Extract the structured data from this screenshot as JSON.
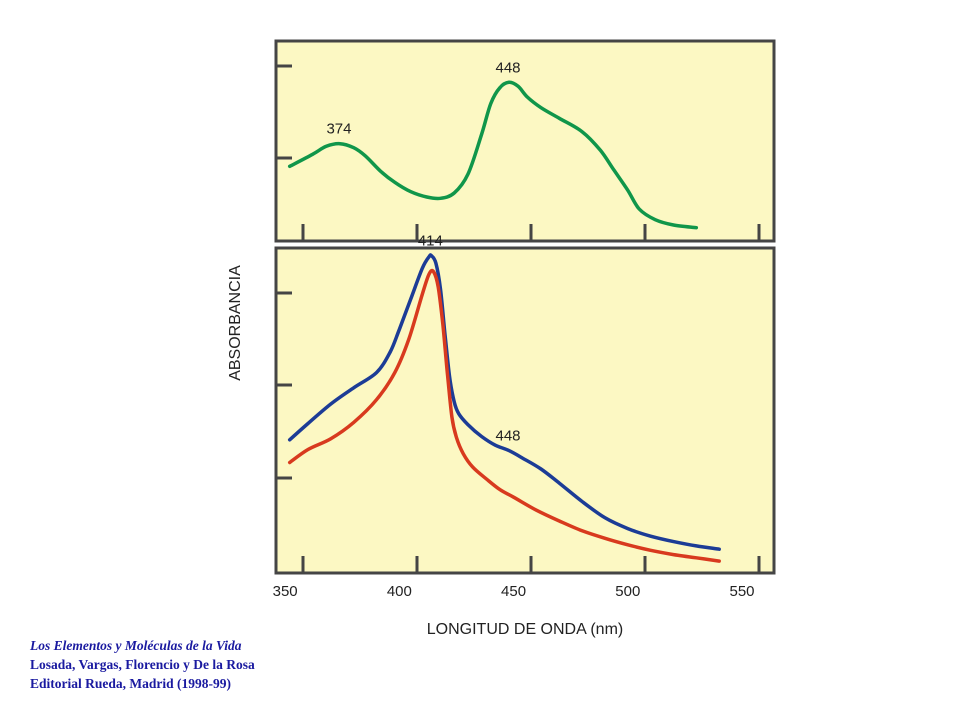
{
  "chart_data": [
    {
      "type": "line",
      "panel": "top",
      "series": [
        {
          "color": "#10964a",
          "x": [
            352,
            362,
            368,
            374,
            380,
            385,
            392,
            398,
            405,
            412,
            418,
            424,
            430,
            436,
            440,
            444,
            448,
            452,
            456,
            462,
            470,
            480,
            488,
            494,
            500,
            505,
            512,
            520,
            530
          ],
          "y": [
            0.56,
            0.65,
            0.71,
            0.73,
            0.7,
            0.64,
            0.52,
            0.44,
            0.37,
            0.33,
            0.32,
            0.36,
            0.5,
            0.8,
            1.03,
            1.15,
            1.19,
            1.16,
            1.08,
            1.0,
            0.92,
            0.82,
            0.68,
            0.53,
            0.38,
            0.24,
            0.16,
            0.12,
            0.1
          ]
        }
      ],
      "annotations": [
        {
          "x": 374,
          "y": 0.73,
          "text": "374"
        },
        {
          "x": 448,
          "y": 1.19,
          "text": "448"
        }
      ],
      "xlim": [
        346,
        564
      ],
      "ylim": [
        0,
        1.5
      ]
    },
    {
      "type": "line",
      "panel": "bottom",
      "xlabel": "LONGITUD DE ONDA (nm)",
      "ylabel": "ABSORBANCIA",
      "x_ticks": [
        "350",
        "400",
        "450",
        "500",
        "550"
      ],
      "xlim": [
        346,
        564
      ],
      "ylim": [
        0,
        3.0
      ],
      "series": [
        {
          "color": "#1c3c96",
          "x": [
            352,
            360,
            370,
            380,
            390,
            396,
            400,
            405,
            410,
            413,
            414,
            416,
            418,
            420,
            422,
            424,
            426,
            430,
            436,
            442,
            448,
            454,
            462,
            470,
            480,
            490,
            500,
            510,
            520,
            530,
            540
          ],
          "y": [
            1.23,
            1.38,
            1.56,
            1.71,
            1.85,
            2.04,
            2.25,
            2.53,
            2.81,
            2.92,
            2.93,
            2.86,
            2.62,
            2.2,
            1.81,
            1.58,
            1.47,
            1.37,
            1.26,
            1.18,
            1.13,
            1.06,
            0.96,
            0.83,
            0.66,
            0.51,
            0.41,
            0.34,
            0.29,
            0.25,
            0.22
          ]
        },
        {
          "color": "#d83a1e",
          "x": [
            352,
            360,
            370,
            380,
            390,
            398,
            404,
            410,
            413,
            415,
            417,
            419,
            421,
            423,
            425,
            428,
            432,
            438,
            444,
            450,
            460,
            470,
            480,
            490,
            500,
            510,
            520,
            530,
            540
          ],
          "y": [
            1.02,
            1.14,
            1.24,
            1.39,
            1.6,
            1.85,
            2.15,
            2.57,
            2.76,
            2.78,
            2.64,
            2.3,
            1.85,
            1.44,
            1.25,
            1.1,
            0.98,
            0.87,
            0.77,
            0.7,
            0.58,
            0.48,
            0.39,
            0.32,
            0.26,
            0.21,
            0.17,
            0.14,
            0.11
          ]
        }
      ],
      "annotations": [
        {
          "x": 414,
          "y": 2.93,
          "text": "414"
        },
        {
          "x": 448,
          "y": 1.13,
          "text": "448"
        }
      ]
    }
  ],
  "colors": {
    "panel_background": "#fcf8c3",
    "frame": "#454545"
  },
  "caption": {
    "line1": "Los Elementos y Moléculas de la Vida",
    "line2": "Losada, Vargas, Florencio y De la Rosa",
    "line3": "Editorial Rueda, Madrid (1998-99)"
  }
}
